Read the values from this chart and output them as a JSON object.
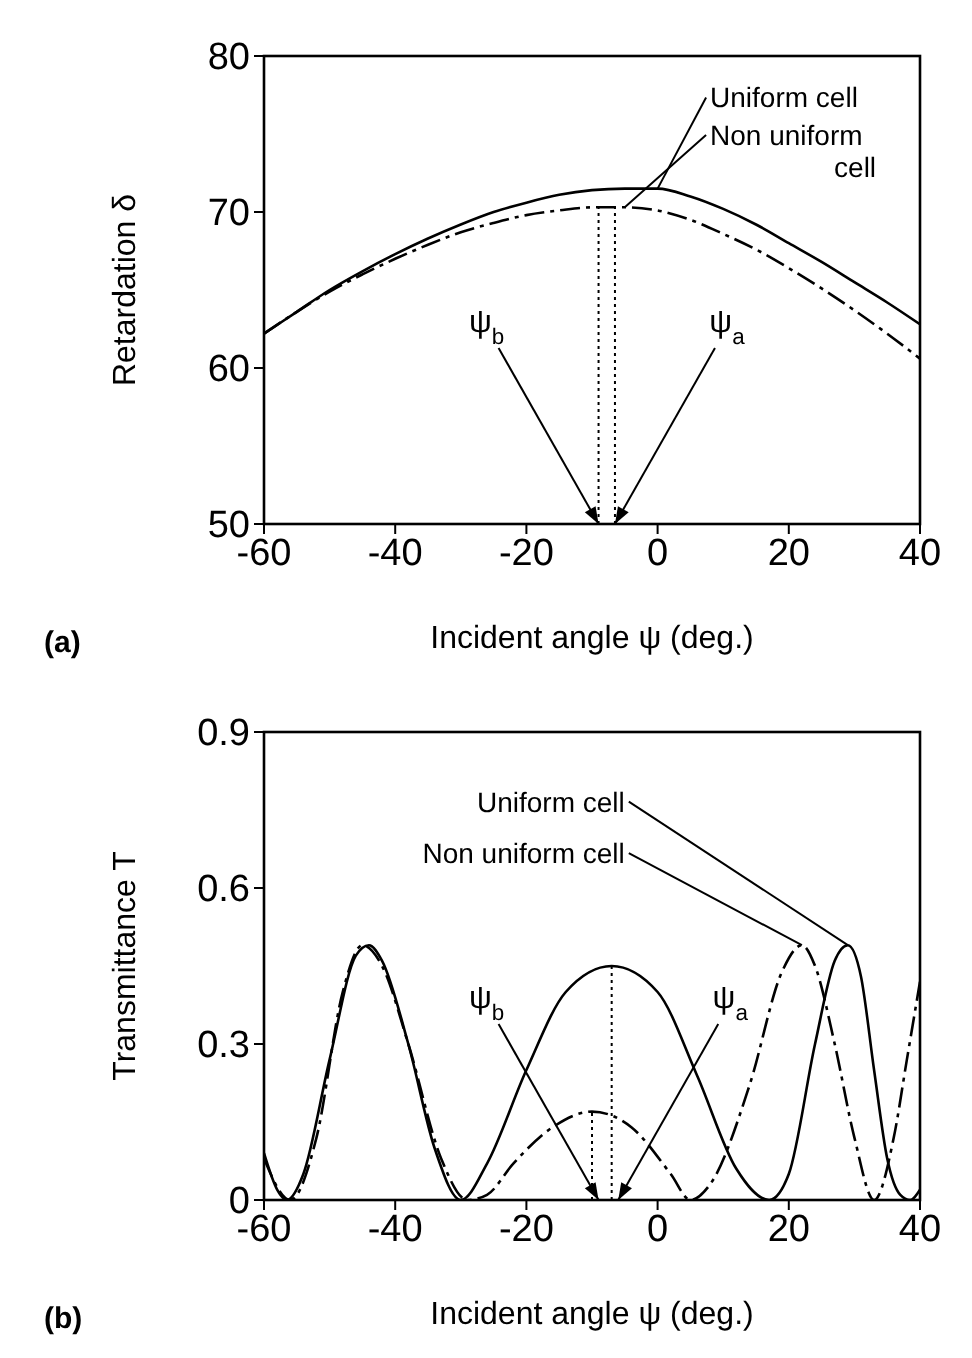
{
  "chart_data": [
    {
      "type": "line",
      "xlabel": "Incident angle ψ (deg.)",
      "ylabel": "Retardation δ",
      "xlim": [
        -60,
        40
      ],
      "ylim": [
        50,
        80
      ],
      "xticks": [
        -60,
        -40,
        -20,
        0,
        20,
        40
      ],
      "yticks": [
        50,
        60,
        70,
        80
      ],
      "marker": "none",
      "annotations": [
        "(a)",
        {
          "text": "ψ$_{b}$",
          "x": -9,
          "y": 50
        },
        {
          "text": "ψ$_{a}$",
          "x": -6.5,
          "y": 50
        }
      ],
      "series": [
        {
          "name": "Uniform cell",
          "color": "#000000",
          "line_style": "solid",
          "x": [
            -60,
            -55,
            -50,
            -45,
            -40,
            -35,
            -30,
            -25,
            -20,
            -15,
            -10,
            -5,
            0,
            5,
            10,
            15,
            20,
            25,
            30,
            35,
            40
          ],
          "values": [
            62.2,
            63.6,
            65.0,
            66.2,
            67.3,
            68.3,
            69.2,
            70.0,
            70.6,
            71.1,
            71.4,
            71.5,
            71.5,
            71.0,
            70.2,
            69.2,
            68.0,
            66.8,
            65.5,
            64.2,
            62.8
          ]
        },
        {
          "name": "Non uniform cell",
          "color": "#000000",
          "line_style": "dashed",
          "x": [
            -60,
            -55,
            -50,
            -45,
            -40,
            -35,
            -30,
            -25,
            -20,
            -15,
            -10,
            -5,
            0,
            5,
            10,
            15,
            20,
            25,
            30,
            35,
            40
          ],
          "values": [
            62.2,
            63.6,
            64.9,
            66.0,
            67.0,
            67.9,
            68.7,
            69.3,
            69.8,
            70.1,
            70.3,
            70.3,
            70.1,
            69.5,
            68.6,
            67.6,
            66.4,
            65.1,
            63.7,
            62.2,
            60.6
          ]
        },
        {
          "color": "#000000",
          "line_style": "dotted",
          "x": [
            -9,
            -9
          ],
          "values": [
            50,
            70.3
          ]
        },
        {
          "color": "#000000",
          "line_style": "dotted",
          "x": [
            -6.5,
            -6.5
          ],
          "values": [
            50,
            70.3
          ]
        }
      ]
    },
    {
      "type": "line",
      "xlabel": "Incident angle ψ (deg.)",
      "ylabel": "Transmittance T",
      "xlim": [
        -60,
        40
      ],
      "ylim": [
        0,
        0.9
      ],
      "xticks": [
        -60,
        -40,
        -20,
        0,
        20,
        40
      ],
      "yticks": [
        0,
        0.3,
        0.6,
        0.9
      ],
      "marker": "none",
      "annotations": [
        "(b)",
        {
          "text": "ψ$_{b}$",
          "x": -9,
          "y": 0
        },
        {
          "text": "ψ$_{a}$",
          "x": -6,
          "y": 0
        }
      ],
      "series": [
        {
          "name": "Uniform cell",
          "color": "#000000",
          "line_style": "solid",
          "x": [
            -60,
            -58,
            -56.5,
            -54,
            -50,
            -46,
            -44,
            -42,
            -38,
            -34,
            -30,
            -26,
            -20,
            -14,
            -7,
            0,
            6,
            12,
            17,
            20,
            24,
            27,
            29,
            31,
            33,
            35,
            37,
            38.5,
            40
          ],
          "values": [
            0.09,
            0.02,
            0,
            0.05,
            0.27,
            0.47,
            0.49,
            0.46,
            0.3,
            0.1,
            0,
            0.07,
            0.25,
            0.4,
            0.45,
            0.4,
            0.24,
            0.06,
            0,
            0.05,
            0.3,
            0.46,
            0.49,
            0.43,
            0.25,
            0.08,
            0.01,
            0,
            0.02
          ]
        },
        {
          "name": "Non uniform cell",
          "color": "#000000",
          "line_style": "dashed",
          "x": [
            -60,
            -56,
            -52,
            -48,
            -45,
            -42,
            -38,
            -33,
            -29,
            -26,
            -22,
            -16,
            -10,
            -4,
            2,
            5,
            8,
            14,
            19,
            22,
            24,
            27,
            30,
            33,
            36,
            38,
            40
          ],
          "values": [
            0.08,
            0,
            0.12,
            0.4,
            0.49,
            0.45,
            0.3,
            0.08,
            0,
            0.01,
            0.07,
            0.14,
            0.17,
            0.14,
            0.05,
            0,
            0.03,
            0.22,
            0.44,
            0.49,
            0.45,
            0.3,
            0.12,
            0,
            0.12,
            0.27,
            0.42
          ]
        },
        {
          "color": "#000000",
          "line_style": "dotted",
          "x": [
            -10,
            -10
          ],
          "values": [
            0,
            0.17
          ]
        },
        {
          "color": "#000000",
          "line_style": "dotted",
          "x": [
            -7,
            -7
          ],
          "values": [
            0,
            0.45
          ]
        }
      ]
    }
  ]
}
